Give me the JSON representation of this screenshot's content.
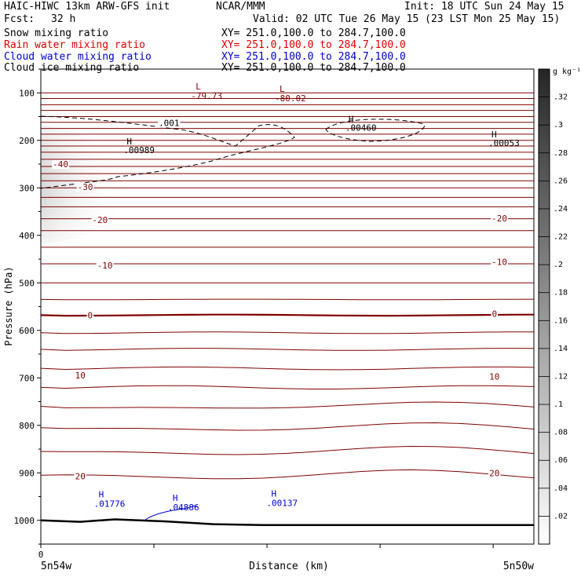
{
  "header": {
    "model": "HAIC-HIWC 13km ARW-GFS init",
    "org": "NCAR/MMM",
    "init": "Init: 18 UTC Sun 24 May 15",
    "fcst_label": "Fcst:",
    "fcst_value": "32 h",
    "valid": "Valid: 02 UTC Tue 26 May 15 (23 LST Mon 25 May 15)",
    "fields": [
      {
        "name": "Snow mixing ratio",
        "xy": "XY= 251.0,100.0 to 284.7,100.0",
        "color": "#000000"
      },
      {
        "name": "Rain water mixing ratio",
        "xy": "XY= 251.0,100.0 to 284.7,100.0",
        "color": "#dd0000"
      },
      {
        "name": "Cloud water mixing ratio",
        "xy": "XY= 251.0,100.0 to 284.7,100.0",
        "color": "#0000cc"
      },
      {
        "name": "Cloud ice mixing ratio",
        "xy": "XY= 251.0,100.0 to 284.7,100.0",
        "color": "#000000"
      }
    ]
  },
  "chart_data": {
    "type": "cross-section contour",
    "ylabel": "Pressure (hPa)",
    "xlabel": "Distance (km)",
    "x_left_label": "5n54w",
    "x_right_label": "5n50w",
    "y_range": [
      50,
      1050
    ],
    "y_ticks": [
      100,
      200,
      300,
      400,
      500,
      600,
      700,
      800,
      900,
      1000
    ],
    "x_tick_label": "0",
    "temperature_labels": [
      {
        "text": "-40",
        "p": 250,
        "x": 0.04
      },
      {
        "text": "-30",
        "p": 298,
        "x": 0.09
      },
      {
        "text": "-20",
        "p": 367,
        "x": 0.12
      },
      {
        "text": "-20",
        "p": 364,
        "x": 0.93
      },
      {
        "text": "-10",
        "p": 463,
        "x": 0.13
      },
      {
        "text": "-10",
        "p": 456,
        "x": 0.93
      },
      {
        "text": "0",
        "p": 568,
        "x": 0.1
      },
      {
        "text": "0",
        "p": 565,
        "x": 0.92
      },
      {
        "text": "10",
        "p": 695,
        "x": 0.08
      },
      {
        "text": "10",
        "p": 697,
        "x": 0.92
      },
      {
        "text": "20",
        "p": 907,
        "x": 0.08
      },
      {
        "text": "20",
        "p": 900,
        "x": 0.92
      }
    ],
    "extrema_red": [
      {
        "letter": "L",
        "value": "-79.73",
        "p": 90,
        "x": 0.33
      },
      {
        "letter": "L",
        "value": "-80.02",
        "p": 95,
        "x": 0.5
      }
    ],
    "extrema_black": [
      {
        "letter": "H",
        "value": ".00989",
        "p": 215,
        "x": 0.19
      },
      {
        "letter": "H",
        "value": ".00460",
        "p": 168,
        "x": 0.64
      },
      {
        "letter": "H",
        "value": ".00053",
        "p": 200,
        "x": 0.93
      }
    ],
    "contour_label_black": {
      "text": ".001",
      "p": 163,
      "x": 0.26
    },
    "extrema_blue": [
      {
        "letter": "H",
        "value": ".01776",
        "p": 965,
        "x": 0.13
      },
      {
        "letter": "H",
        "value": ".04886",
        "p": 972,
        "x": 0.28
      },
      {
        "letter": "H",
        "value": ".00137",
        "p": 963,
        "x": 0.48
      }
    ],
    "colorbar": {
      "unit": "g kg⁻¹",
      "range": [
        0,
        0.34
      ],
      "ticks": [
        ".02",
        ".04",
        ".06",
        ".08",
        ".1",
        ".12",
        ".14",
        ".16",
        ".18",
        ".2",
        ".22",
        ".24",
        ".26",
        ".28",
        ".3",
        ".32"
      ]
    },
    "colors": {
      "isotherm": "#800000",
      "blue_label": "#0000cc",
      "terrain": "#000000"
    }
  }
}
